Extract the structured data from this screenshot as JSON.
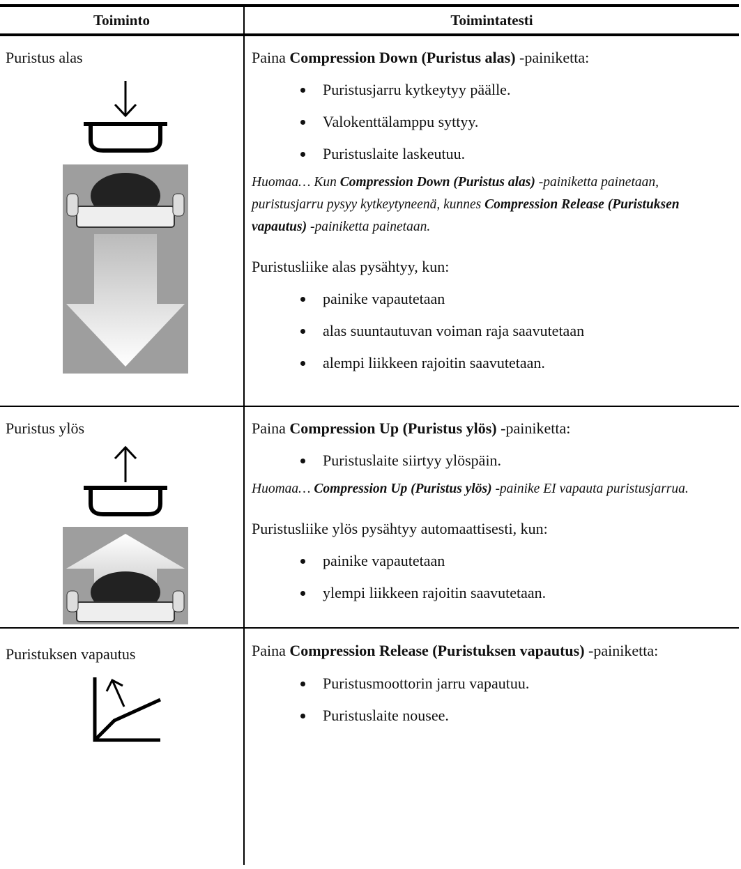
{
  "table": {
    "header": [
      "Toiminto",
      "Toimintatesti"
    ],
    "rows": [
      {
        "function": "Puristus alas",
        "intro": [
          "Paina ",
          "Compression Down (Puristus alas)",
          " -painiketta:"
        ],
        "bullets": [
          "Puristusjarru kytkeytyy päälle.",
          "Valokenttälamppu syttyy.",
          "Puristuslaite laskeutuu."
        ],
        "note": [
          "Huomaa… Kun ",
          "Compression Down (Puristus alas)",
          " -painiketta painetaan, puristusjarru pysyy kytkeytyneenä, kunnes ",
          "Compression Release (Puristuksen vapautus)",
          " -painiketta painetaan."
        ],
        "stop_intro": "Puristusliike alas pysähtyy, kun:",
        "stop_bullets": [
          "painike vapautetaan",
          "alas suuntautuvan voiman raja saavutetaan",
          "alempi liikkeen rajoitin saavutetaan."
        ]
      },
      {
        "function": "Puristus ylös",
        "intro": [
          "Paina ",
          "Compression Up (Puristus ylös)",
          " -painiketta:"
        ],
        "bullets": [
          "Puristuslaite siirtyy ylöspäin."
        ],
        "note": [
          "Huomaa… ",
          "Compression Up (Puristus ylös)",
          " -painike EI vapauta puristusjarrua."
        ],
        "stop_intro": "Puristusliike ylös pysähtyy automaattisesti, kun:",
        "stop_bullets": [
          "painike vapautetaan",
          "ylempi liikkeen rajoitin saavutetaan."
        ]
      },
      {
        "function": "Puristuksen vapautus",
        "intro": [
          "Paina ",
          "Compression Release (Puristuksen vapautus)",
          " -painiketta:"
        ],
        "bullets": [
          "Puristusmoottorin jarru vapautuu.",
          "Puristuslaite nousee."
        ]
      }
    ]
  }
}
